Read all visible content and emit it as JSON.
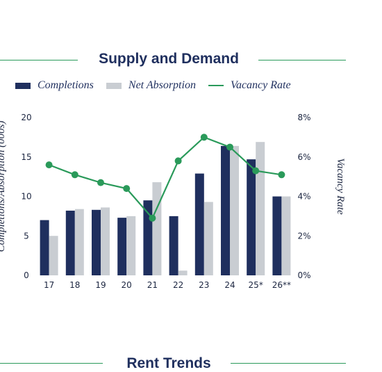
{
  "section_title": "Supply and Demand",
  "next_section_title": "Rent Trends",
  "colors": {
    "completions": "#1f2f5e",
    "net_absorption": "#c9cdd2",
    "vacancy_rate": "#2a9a5a",
    "rule": "#2a9a5a",
    "text": "#1b2540"
  },
  "chart_data": {
    "type": "bar",
    "title": "Supply and Demand",
    "categories": [
      "17",
      "18",
      "19",
      "20",
      "21",
      "22",
      "23",
      "24",
      "25*",
      "26**"
    ],
    "series": [
      {
        "name": "Completions",
        "type": "bar",
        "axis": "left",
        "values": [
          7.0,
          8.2,
          8.3,
          7.3,
          9.5,
          7.5,
          12.9,
          16.4,
          14.7,
          10.0
        ]
      },
      {
        "name": "Net Absorption",
        "type": "bar",
        "axis": "left",
        "values": [
          5.0,
          8.4,
          8.6,
          7.5,
          11.8,
          0.6,
          9.3,
          16.4,
          16.9,
          10.0
        ]
      },
      {
        "name": "Vacancy Rate",
        "type": "line",
        "axis": "right",
        "values": [
          5.6,
          5.1,
          4.7,
          4.4,
          2.9,
          5.8,
          7.0,
          6.5,
          5.3,
          5.1
        ]
      }
    ],
    "ylabel": "Completions/Absorption (000s)",
    "y2label": "Vacancy Rate",
    "ylim": [
      0,
      20
    ],
    "yticks": [
      "0",
      "5",
      "10",
      "15",
      "20"
    ],
    "y2lim": [
      0,
      8
    ],
    "y2ticks": [
      "0%",
      "2%",
      "4%",
      "6%",
      "8%"
    ],
    "grid": false,
    "legend_position": "top-left"
  }
}
